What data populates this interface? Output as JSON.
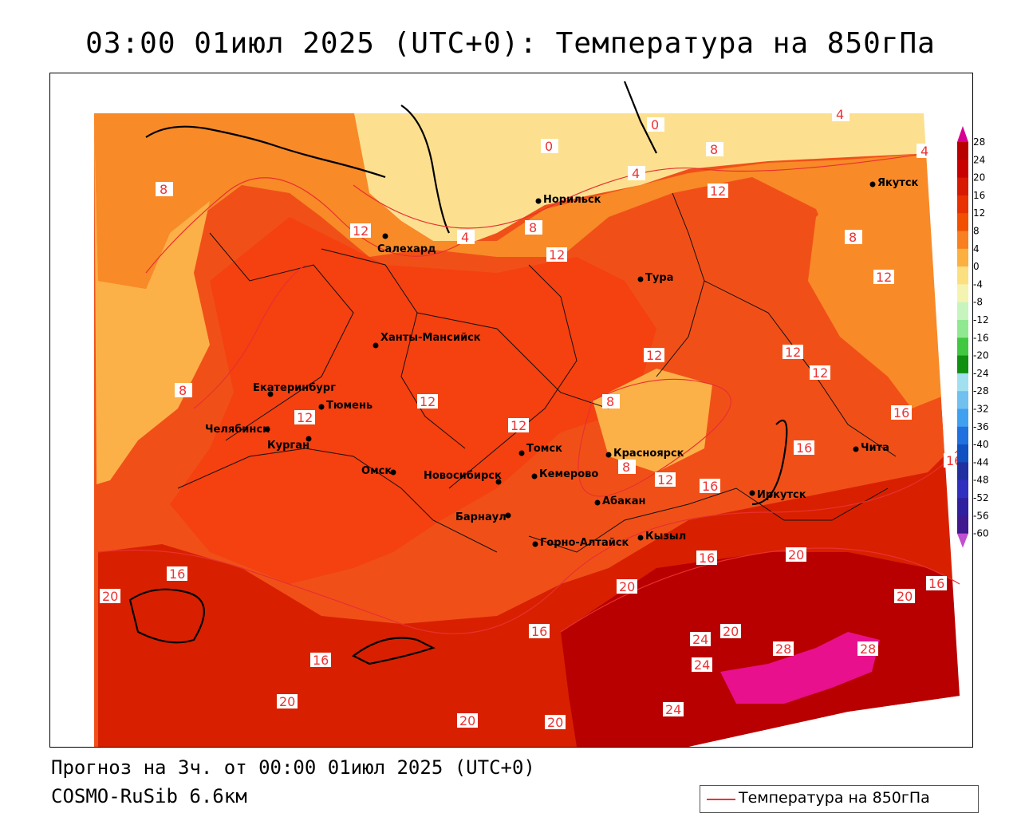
{
  "title": "03:00 01июл 2025 (UTC+0): Температура на 850гПа",
  "footer": {
    "forecast": "Прогноз на 3ч. от 00:00 01июл 2025 (UTC+0)",
    "model": "COSMO-RuSib 6.6км"
  },
  "legend": {
    "label": "Температура на 850гПа",
    "line_color": "#e83030"
  },
  "colorbar": {
    "labels": [
      "28",
      "24",
      "20",
      "16",
      "12",
      "8",
      "4",
      "0",
      "-4",
      "-8",
      "-12",
      "-16",
      "-20",
      "-24",
      "-28",
      "-32",
      "-36",
      "-40",
      "-44",
      "-48",
      "-52",
      "-56",
      "-60"
    ],
    "colors": [
      "#b80000",
      "#c80000",
      "#d81800",
      "#e83000",
      "#f05000",
      "#f88020",
      "#fcb040",
      "#fce080",
      "#f4f4b0",
      "#c8f4c0",
      "#90e890",
      "#40c840",
      "#109010",
      "#a0e0f0",
      "#70c0f0",
      "#40a0f0",
      "#2070e0",
      "#1050c0",
      "#2030a0",
      "#3030c0",
      "#3020a0",
      "#401890"
    ],
    "top_color": "#d80090",
    "bottom_color": "#c050d0"
  },
  "cities": [
    {
      "name": "Норильск"
    },
    {
      "name": "Якутск"
    },
    {
      "name": "Салехард"
    },
    {
      "name": "Тура"
    },
    {
      "name": "Ханты-Мансийск"
    },
    {
      "name": "Екатеринбург"
    },
    {
      "name": "Тюмень"
    },
    {
      "name": "Челябинск"
    },
    {
      "name": "Курган"
    },
    {
      "name": "Омск"
    },
    {
      "name": "Новосибирск"
    },
    {
      "name": "Томск"
    },
    {
      "name": "Кемерово"
    },
    {
      "name": "Красноярск"
    },
    {
      "name": "Барнаул"
    },
    {
      "name": "Абакан"
    },
    {
      "name": "Горно-Алтайск"
    },
    {
      "name": "Кызыл"
    },
    {
      "name": "Иркутск"
    },
    {
      "name": "Чита"
    }
  ],
  "isotherm_labels": [
    "0",
    "0",
    "4",
    "4",
    "4",
    "4",
    "8",
    "8",
    "8",
    "8",
    "8",
    "8",
    "8",
    "12",
    "12",
    "12",
    "12",
    "12",
    "12",
    "12",
    "12",
    "12",
    "12",
    "12",
    "16",
    "16",
    "16",
    "16",
    "16",
    "16",
    "16",
    "16",
    "16",
    "20",
    "20",
    "20",
    "20",
    "20",
    "20",
    "20",
    "20",
    "24",
    "24",
    "24",
    "28",
    "28"
  ]
}
